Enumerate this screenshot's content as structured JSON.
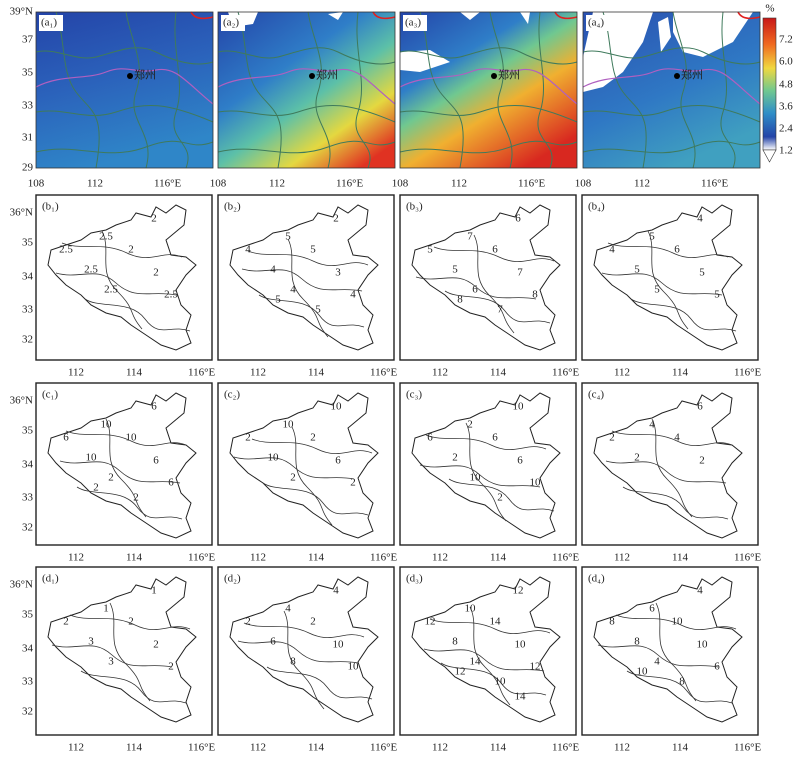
{
  "top_panels": [
    {
      "label": "(a₁)"
    },
    {
      "label": "(a₂)"
    },
    {
      "label": "(a₃)"
    },
    {
      "label": "(a₄)"
    }
  ],
  "top_axes": {
    "y_ticks": [
      "39°N",
      "37",
      "35",
      "33",
      "31",
      "29"
    ],
    "x_ticks": [
      "108",
      "112",
      "116°E"
    ]
  },
  "city": "郑州",
  "colorbar": {
    "unit": "%",
    "ticks": [
      "7.2",
      "6.0",
      "4.8",
      "3.6",
      "2.4",
      "1.2"
    ]
  },
  "contour_axes": {
    "y_ticks": [
      "36°N",
      "35",
      "34",
      "33",
      "32"
    ],
    "x_ticks": [
      "112",
      "114",
      "116°E"
    ]
  },
  "contour_rows": [
    [
      {
        "label": "(b₁)",
        "contour_labels": [
          "2",
          "2.5",
          "2.5",
          "2",
          "2.5",
          "2",
          "2.5",
          "2.5"
        ]
      },
      {
        "label": "(b₂)",
        "contour_labels": [
          "2",
          "5",
          "4",
          "5",
          "4",
          "3",
          "4",
          "4",
          "5",
          "5"
        ]
      },
      {
        "label": "(b₃)",
        "contour_labels": [
          "6",
          "7",
          "5",
          "6",
          "5",
          "7",
          "6",
          "8",
          "7",
          "8"
        ]
      },
      {
        "label": "(b₄)",
        "contour_labels": [
          "4",
          "5",
          "4",
          "6",
          "5",
          "5",
          "5",
          "5"
        ]
      }
    ],
    [
      {
        "label": "(c₁)",
        "contour_labels": [
          "6",
          "10",
          "6",
          "10",
          "10",
          "6",
          "2",
          "6",
          "2",
          "2"
        ]
      },
      {
        "label": "(c₂)",
        "contour_labels": [
          "10",
          "10",
          "2",
          "2",
          "10",
          "6",
          "2",
          "2"
        ]
      },
      {
        "label": "(c₃)",
        "contour_labels": [
          "10",
          "2",
          "6",
          "6",
          "2",
          "6",
          "10",
          "10",
          "2"
        ]
      },
      {
        "label": "(c₄)",
        "contour_labels": [
          "6",
          "4",
          "2",
          "4",
          "2",
          "2"
        ]
      }
    ],
    [
      {
        "label": "(d₁)",
        "contour_labels": [
          "1",
          "1",
          "2",
          "2",
          "3",
          "2",
          "3",
          "2"
        ]
      },
      {
        "label": "(d₂)",
        "contour_labels": [
          "4",
          "4",
          "2",
          "2",
          "6",
          "10",
          "8",
          "10"
        ]
      },
      {
        "label": "(d₃)",
        "contour_labels": [
          "12",
          "10",
          "12",
          "14",
          "8",
          "10",
          "14",
          "12",
          "10",
          "12",
          "14"
        ]
      },
      {
        "label": "(d₄)",
        "contour_labels": [
          "4",
          "6",
          "8",
          "10",
          "8",
          "10",
          "4",
          "6",
          "8",
          "10"
        ]
      }
    ]
  ]
}
